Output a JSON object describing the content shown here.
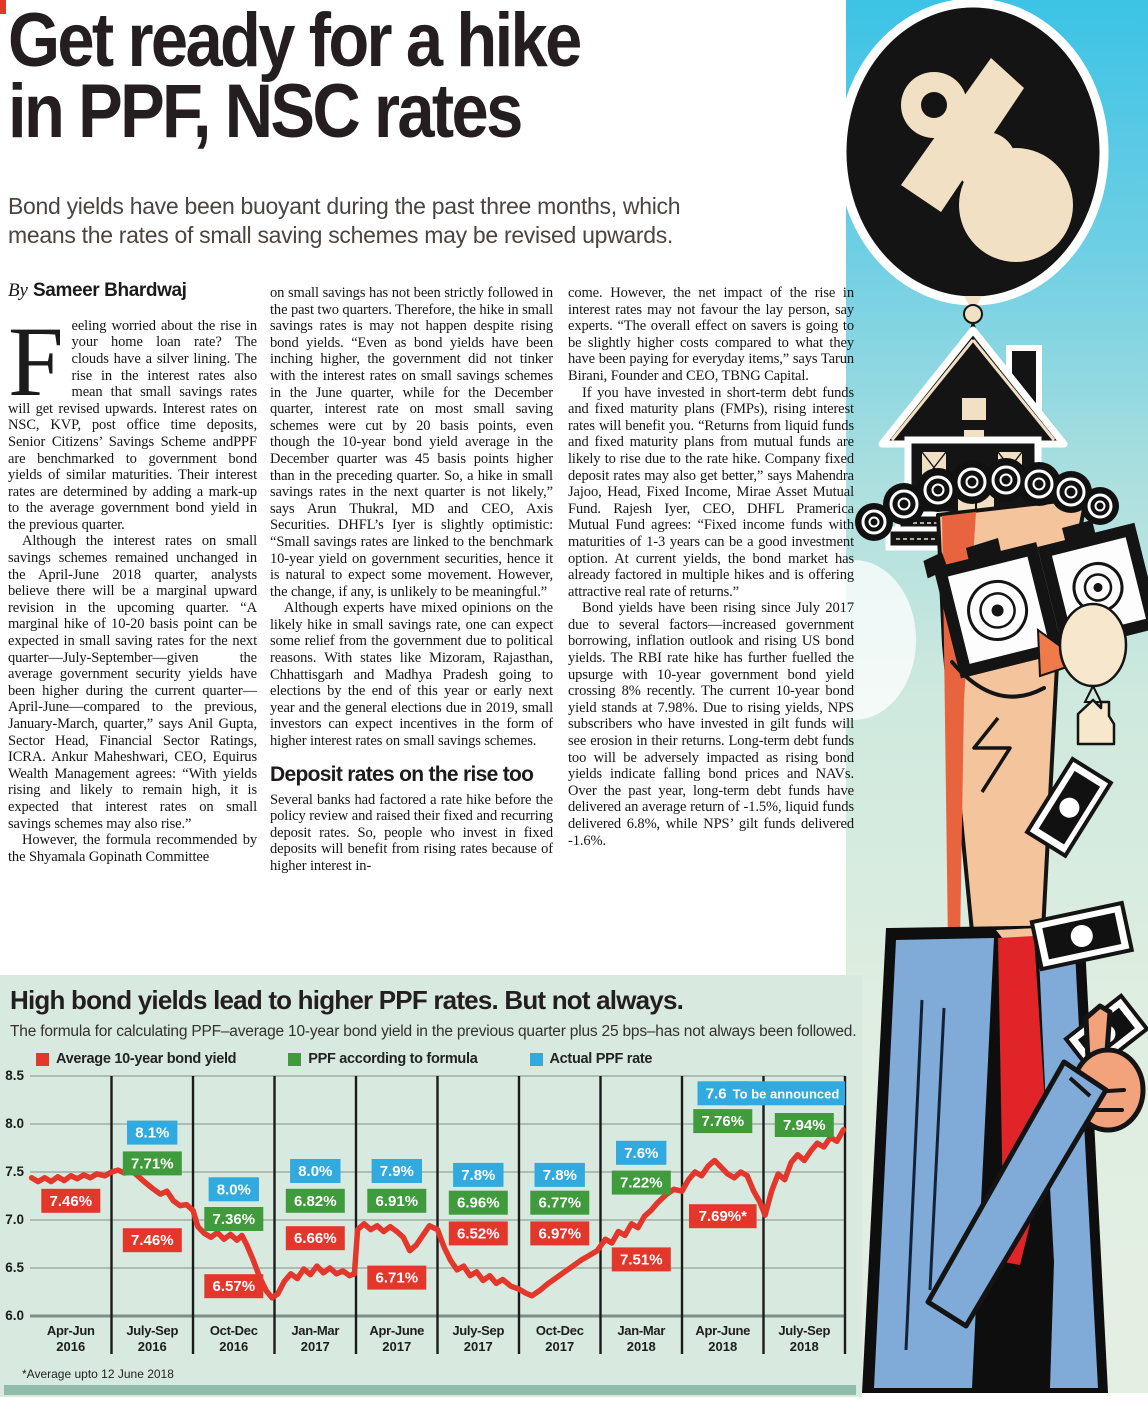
{
  "article": {
    "title_line1": "Get ready for a hike",
    "title_line2": "in PPF, NSC rates",
    "standfirst": "Bond yields have been buoyant during the past three months, which means the rates of small saving schemes may be revised upwards.",
    "byline_prefix": "By",
    "byline_name": "Sameer Bhardwaj",
    "dropcap": "F",
    "col1_p1_rest": "eeling worried about the rise in your home loan rate? The clouds have a silver lining. The rise in the interest rates also mean that small savings rates will get revised upwards. Interest rates on NSC, KVP, post office time deposits, Senior Citizens’ Savings Scheme andPPF are benchmarked to government bond yields of similar maturities. Their interest rates are determined by adding a mark-up to the average government bond yield in the previous quarter.",
    "col1_p2": "Although the interest rates on small savings schemes remained unchanged in the April-June 2018 quarter, analysts believe there will be a marginal upward revision in the upcoming quarter. “A marginal hike of 10-20 basis point can be expected in small saving rates for the next quarter—July-September—given the average government security yields have been higher during the current quarter—April-June—compared to the previous, January-March, quarter,” says Anil Gupta, Sector Head, Financial Sector Ratings, ICRA. Ankur Maheshwari, CEO, Equirus Wealth Management agrees: “With yields rising and likely to remain high, it is expected that interest rates on small savings schemes may also rise.”",
    "col1_p3": "However, the formula recommended by the Shyamala Gopinath Committee",
    "col2_p1": "on small savings has not been strictly followed in the past two quarters. Therefore, the hike in small savings rates is may not happen despite rising bond yields. “Even as bond yields have been inching higher, the government did not tinker with the interest rates on small savings schemes in the June quarter, while for the December quarter, interest rate on most small saving schemes were cut by 20 basis points, even though the 10-year bond yield average in the December quarter was 45 basis points higher than in the preceding quarter. So, a hike in small savings rates in the next quarter is not likely,” says Arun Thukral, MD and CEO, Axis Securities. DHFL’s Iyer is slightly optimistic: “Small savings rates are linked to the benchmark 10-year yield on government securities, hence it is natural to expect some movement. However, the change, if any, is unlikely to be meaningful.”",
    "col2_p2": "Although experts have mixed opinions on the likely hike in small savings rate, one can expect some relief from the government due to political reasons. With states like Mizoram, Rajasthan, Chhattisgarh and Madhya Pradesh going to elections by the end of this year or early next year and the general elections due in 2019, small investors can expect incentives in the form of higher interest rates on small savings schemes.",
    "col2_heading": "Deposit rates on the rise too",
    "col2_p3": "Several banks had factored a rate hike before the policy review and raised their fixed and recurring deposit rates. So, people who invest in fixed deposits will benefit from rising rates because of higher interest in-",
    "col3_p1": "come. However, the net impact of the rise in interest rates may not favour the lay person, say experts. “The overall effect on savers is going to be slightly higher costs compared to what they have been paying for everyday items,” says Tarun Birani, Founder and CEO, TBNG Capital.",
    "col3_p2": "If you have invested in short-term debt funds and fixed maturity plans (FMPs), rising interest rates will benefit you. “Returns from liquid funds and fixed maturity plans from mutual funds are likely to rise due to the rate hike. Company fixed deposit rates may also get better,” says Mahendra Jajoo, Head, Fixed Income, Mirae Asset Mutual Fund. Rajesh Iyer, CEO, DHFL Pramerica Mutual Fund agrees: “Fixed income funds with maturities of 1-3 years can be a good investment option. At current yields, the bond market has already factored in multiple hikes and is offering attractive real rate of returns.”",
    "col3_p3": "Bond yields have been rising since July 2017 due to several factors—increased government borrowing, inflation outlook and rising US bond yields. The RBI rate hike has further fuelled the upsurge with 10-year government bond yield crossing 8% recently. The current 10-year bond yield stands at 7.98%. Due to rising yields, NPS subscribers who have invested in gilt funds will see erosion in their returns. Long-term debt funds too will be adversely impacted as rising bond yields indicate falling bond prices and NAVs. Over the past year, long-term debt funds have delivered an average return of -1.5%, liquid funds delivered 6.8%, while NPS’ gilt funds delivered -1.6%."
  },
  "chart_data": {
    "type": "line",
    "title": "High bond yields lead to higher PPF rates. But not always.",
    "subtitle": "The formula for calculating PPF–average 10-year bond yield in the previous quarter plus 25 bps–has not always been followed.",
    "footnote": "*Average upto 12 June 2018",
    "ylim": [
      6.0,
      8.5
    ],
    "yticks": [
      "8.5",
      "8.0",
      "7.5",
      "7.0",
      "6.5",
      "6.0"
    ],
    "grid": true,
    "legend_position": "top",
    "legend": [
      {
        "series": "bond",
        "label": "Average 10-year bond yield",
        "color": "#e4372c"
      },
      {
        "series": "formula",
        "label": "PPF according to formula",
        "color": "#3f9b3c"
      },
      {
        "series": "actual",
        "label": "Actual PPF rate",
        "color": "#31abdf"
      }
    ],
    "categories": [
      {
        "label": "Apr-Jun",
        "year": "2016"
      },
      {
        "label": "July-Sep",
        "year": "2016"
      },
      {
        "label": "Oct-Dec",
        "year": "2016"
      },
      {
        "label": "Jan-Mar",
        "year": "2017"
      },
      {
        "label": "Apr-June",
        "year": "2017"
      },
      {
        "label": "July-Sep",
        "year": "2017"
      },
      {
        "label": "Oct-Dec",
        "year": "2017"
      },
      {
        "label": "Jan-Mar",
        "year": "2018"
      },
      {
        "label": "Apr-June",
        "year": "2018"
      },
      {
        "label": "July-Sep",
        "year": "2018"
      }
    ],
    "annotations": [
      {
        "q": 0,
        "items": [
          {
            "series": "bond",
            "text": "7.46%",
            "v": 7.2
          }
        ]
      },
      {
        "q": 1,
        "items": [
          {
            "series": "actual",
            "text": "8.1%",
            "v": 7.91
          },
          {
            "series": "formula",
            "text": "7.71%",
            "v": 7.59
          },
          {
            "series": "bond",
            "text": "7.46%",
            "v": 6.79
          }
        ]
      },
      {
        "q": 2,
        "items": [
          {
            "series": "actual",
            "text": "8.0%",
            "v": 7.32
          },
          {
            "series": "formula",
            "text": "7.36%",
            "v": 7.01
          },
          {
            "series": "bond",
            "text": "6.57%",
            "v": 6.31
          }
        ]
      },
      {
        "q": 3,
        "items": [
          {
            "series": "actual",
            "text": "8.0%",
            "v": 7.51
          },
          {
            "series": "formula",
            "text": "6.82%",
            "v": 7.2
          },
          {
            "series": "bond",
            "text": "6.66%",
            "v": 6.81
          }
        ]
      },
      {
        "q": 4,
        "items": [
          {
            "series": "actual",
            "text": "7.9%",
            "v": 7.51
          },
          {
            "series": "formula",
            "text": "6.91%",
            "v": 7.2
          },
          {
            "series": "bond",
            "text": "6.71%",
            "v": 6.4
          }
        ]
      },
      {
        "q": 5,
        "items": [
          {
            "series": "actual",
            "text": "7.8%",
            "v": 7.47
          },
          {
            "series": "formula",
            "text": "6.96%",
            "v": 7.18
          },
          {
            "series": "bond",
            "text": "6.52%",
            "v": 6.86
          }
        ]
      },
      {
        "q": 6,
        "items": [
          {
            "series": "actual",
            "text": "7.8%",
            "v": 7.47
          },
          {
            "series": "formula",
            "text": "6.77%",
            "v": 7.18
          },
          {
            "series": "bond",
            "text": "6.97%",
            "v": 6.86
          }
        ]
      },
      {
        "q": 7,
        "items": [
          {
            "series": "actual",
            "text": "7.6%",
            "v": 7.7
          },
          {
            "series": "formula",
            "text": "7.22%",
            "v": 7.39
          },
          {
            "series": "bond",
            "text": "7.51%",
            "v": 6.59
          }
        ]
      },
      {
        "q": 8,
        "items": [
          {
            "series": "actual",
            "text": "7.6%",
            "v": 8.32
          },
          {
            "series": "formula",
            "text": "7.76%",
            "v": 8.03
          },
          {
            "series": "bond",
            "text": "7.69%*",
            "v": 7.04
          }
        ]
      },
      {
        "q": 9,
        "items": [
          {
            "series": "actual",
            "text": "To be announced",
            "v": 8.32
          },
          {
            "series": "formula",
            "text": "7.94%",
            "v": 7.99
          }
        ]
      }
    ],
    "series": [
      {
        "name": "Average 10-year bond yield",
        "color": "#e4372c",
        "points": [
          [
            0.02,
            7.44
          ],
          [
            0.1,
            7.4
          ],
          [
            0.18,
            7.44
          ],
          [
            0.26,
            7.4
          ],
          [
            0.34,
            7.45
          ],
          [
            0.42,
            7.41
          ],
          [
            0.5,
            7.46
          ],
          [
            0.58,
            7.43
          ],
          [
            0.66,
            7.47
          ],
          [
            0.74,
            7.44
          ],
          [
            0.82,
            7.48
          ],
          [
            0.92,
            7.46
          ],
          [
            1.0,
            7.5
          ],
          [
            1.08,
            7.52
          ],
          [
            1.16,
            7.49
          ],
          [
            1.24,
            7.52
          ],
          [
            1.32,
            7.46
          ],
          [
            1.4,
            7.4
          ],
          [
            1.5,
            7.33
          ],
          [
            1.6,
            7.27
          ],
          [
            1.68,
            7.3
          ],
          [
            1.76,
            7.2
          ],
          [
            1.84,
            7.15
          ],
          [
            1.92,
            7.16
          ],
          [
            2.0,
            7.1
          ],
          [
            2.06,
            6.93
          ],
          [
            2.14,
            6.86
          ],
          [
            2.22,
            6.82
          ],
          [
            2.3,
            6.87
          ],
          [
            2.38,
            6.8
          ],
          [
            2.46,
            6.85
          ],
          [
            2.54,
            6.79
          ],
          [
            2.6,
            6.84
          ],
          [
            2.66,
            6.74
          ],
          [
            2.74,
            6.58
          ],
          [
            2.82,
            6.4
          ],
          [
            2.9,
            6.26
          ],
          [
            2.97,
            6.19
          ],
          [
            3.04,
            6.23
          ],
          [
            3.12,
            6.36
          ],
          [
            3.2,
            6.44
          ],
          [
            3.28,
            6.39
          ],
          [
            3.36,
            6.49
          ],
          [
            3.44,
            6.43
          ],
          [
            3.52,
            6.52
          ],
          [
            3.6,
            6.45
          ],
          [
            3.68,
            6.5
          ],
          [
            3.76,
            6.44
          ],
          [
            3.84,
            6.47
          ],
          [
            3.92,
            6.42
          ],
          [
            3.98,
            6.44
          ],
          [
            4.02,
            6.9
          ],
          [
            4.1,
            6.96
          ],
          [
            4.18,
            6.9
          ],
          [
            4.26,
            6.94
          ],
          [
            4.34,
            6.88
          ],
          [
            4.42,
            6.93
          ],
          [
            4.5,
            6.88
          ],
          [
            4.58,
            6.82
          ],
          [
            4.66,
            6.68
          ],
          [
            4.74,
            6.74
          ],
          [
            4.82,
            6.84
          ],
          [
            4.9,
            6.94
          ],
          [
            5.0,
            6.9
          ],
          [
            5.08,
            6.72
          ],
          [
            5.16,
            6.58
          ],
          [
            5.24,
            6.48
          ],
          [
            5.32,
            6.52
          ],
          [
            5.4,
            6.42
          ],
          [
            5.48,
            6.46
          ],
          [
            5.56,
            6.37
          ],
          [
            5.64,
            6.42
          ],
          [
            5.72,
            6.34
          ],
          [
            5.8,
            6.38
          ],
          [
            5.9,
            6.31
          ],
          [
            6.0,
            6.28
          ],
          [
            6.08,
            6.24
          ],
          [
            6.16,
            6.21
          ],
          [
            6.26,
            6.27
          ],
          [
            6.36,
            6.34
          ],
          [
            6.46,
            6.4
          ],
          [
            6.56,
            6.46
          ],
          [
            6.66,
            6.52
          ],
          [
            6.76,
            6.58
          ],
          [
            6.86,
            6.63
          ],
          [
            6.96,
            6.68
          ],
          [
            7.06,
            6.8
          ],
          [
            7.14,
            6.76
          ],
          [
            7.22,
            6.88
          ],
          [
            7.3,
            6.84
          ],
          [
            7.38,
            6.96
          ],
          [
            7.46,
            6.92
          ],
          [
            7.54,
            7.04
          ],
          [
            7.62,
            7.1
          ],
          [
            7.7,
            7.18
          ],
          [
            7.8,
            7.26
          ],
          [
            7.9,
            7.32
          ],
          [
            8.0,
            7.3
          ],
          [
            8.08,
            7.42
          ],
          [
            8.16,
            7.5
          ],
          [
            8.24,
            7.46
          ],
          [
            8.32,
            7.56
          ],
          [
            8.4,
            7.62
          ],
          [
            8.48,
            7.55
          ],
          [
            8.56,
            7.48
          ],
          [
            8.64,
            7.44
          ],
          [
            8.72,
            7.5
          ],
          [
            8.8,
            7.46
          ],
          [
            8.88,
            7.3
          ],
          [
            8.96,
            7.18
          ],
          [
            9.02,
            7.05
          ],
          [
            9.1,
            7.3
          ],
          [
            9.18,
            7.48
          ],
          [
            9.26,
            7.42
          ],
          [
            9.34,
            7.6
          ],
          [
            9.42,
            7.68
          ],
          [
            9.5,
            7.62
          ],
          [
            9.58,
            7.72
          ],
          [
            9.66,
            7.8
          ],
          [
            9.74,
            7.76
          ],
          [
            9.82,
            7.86
          ],
          [
            9.9,
            7.82
          ],
          [
            9.98,
            7.94
          ]
        ]
      }
    ],
    "series_colors": {
      "bond": "#e4372c",
      "formula": "#3f9b3c",
      "actual": "#31abdf"
    }
  },
  "colors": {
    "panel_bg": "#d8eae0",
    "teal_bar": "#8fbcab",
    "grid": "#a0aea6",
    "axis": "#7e8e86",
    "separator": "#1b1b1b",
    "headline": "#241e20"
  }
}
